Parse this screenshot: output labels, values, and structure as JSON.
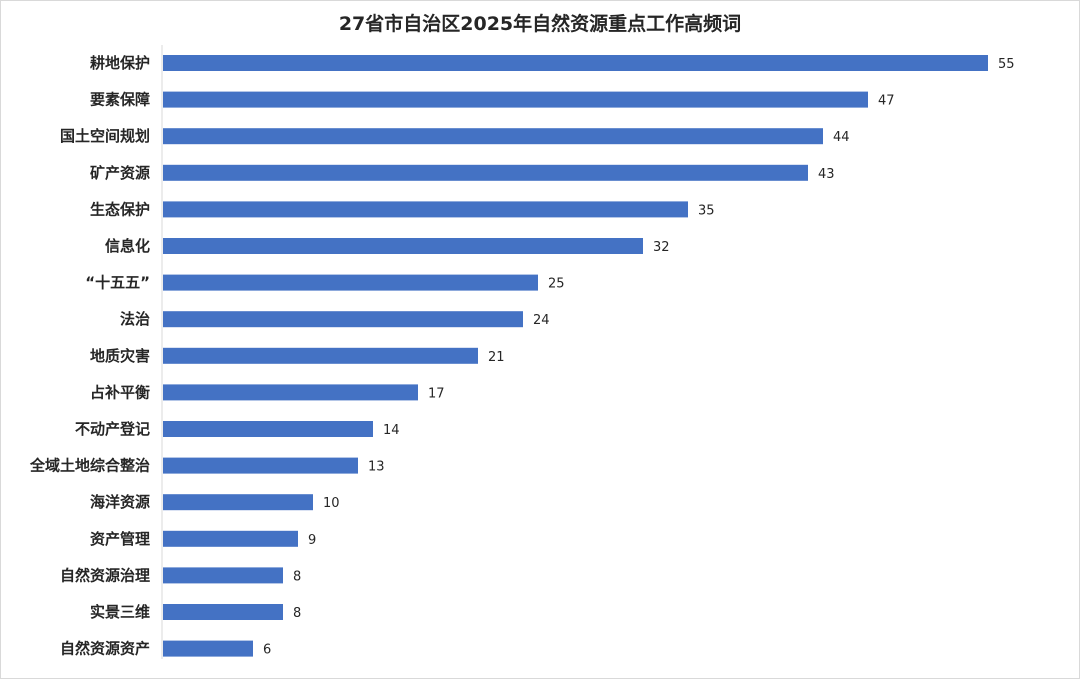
{
  "chart_data": {
    "type": "bar",
    "orientation": "horizontal",
    "title": "27省市自治区2025年自然资源重点工作高频词",
    "categories": [
      "耕地保护",
      "要素保障",
      "国土空间规划",
      "矿产资源",
      "生态保护",
      "信息化",
      "“十五五”",
      "法治",
      "地质灾害",
      "占补平衡",
      "不动产登记",
      "全域土地综合整治",
      "海洋资源",
      "资产管理",
      "自然资源治理",
      "实景三维",
      "自然资源资产"
    ],
    "values": [
      55,
      47,
      44,
      43,
      35,
      32,
      25,
      24,
      21,
      17,
      14,
      13,
      10,
      9,
      8,
      8,
      6
    ],
    "xlim": [
      0,
      55
    ],
    "xlabel": "",
    "ylabel": "",
    "data_labels": true,
    "gridlines": false,
    "legend": "none",
    "bar_color": "#4472c4"
  }
}
